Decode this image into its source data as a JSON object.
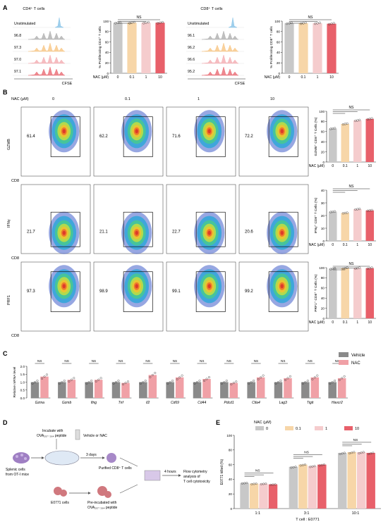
{
  "colors": {
    "c0": "#c8c8c8",
    "c01": "#f7d6a8",
    "c1": "#f5cccd",
    "c10": "#e8606a",
    "vehicle": "#8a8a8a",
    "nac": "#e8606a"
  },
  "panel_labels": {
    "a": "A",
    "b": "B",
    "c": "C",
    "d": "D",
    "e": "E"
  },
  "panel_a": {
    "cd4_title": "CD4⁺ T cells",
    "cd8_title": "CD8⁺ T cells",
    "histogram_labels_cd4": [
      "Unstimulated",
      "96.8",
      "97.3",
      "97.0",
      "97.1"
    ],
    "histogram_labels_cd8": [
      "Unstimulated",
      "96.1",
      "96.2",
      "96.6",
      "95.2"
    ],
    "xaxis": "CFSE",
    "nac_label": "NAC (μM)",
    "ns": "NS"
  },
  "panel_b": {
    "nac_header": "NAC (μM)",
    "concentrations": [
      "0",
      "0.1",
      "1",
      "10"
    ],
    "rows": [
      {
        "ylabel": "GZMB",
        "values": [
          "61.4",
          "62.2",
          "71.6",
          "72.2"
        ]
      },
      {
        "ylabel": "IFNγ",
        "values": [
          "21.7",
          "21.1",
          "22.7",
          "20.6"
        ]
      },
      {
        "ylabel": "PRF1",
        "values": [
          "97.3",
          "98.9",
          "99.1",
          "99.2"
        ]
      }
    ],
    "xlabel": "CD8",
    "nac_label": "NAC (μM)",
    "ns": "NS"
  },
  "panel_c": {
    "ylabel": "Relative mRNA level",
    "legend": [
      "Vehicle",
      "NAC"
    ],
    "ns": "NS",
    "genes": [
      "Gzma",
      "Gzmb",
      "Ifng",
      "Tnf",
      "Il2",
      "Cd69",
      "Cd44",
      "Pdcd1",
      "Ctla4",
      "Lag3",
      "Tigit",
      "Havcr2"
    ]
  },
  "panel_d": {
    "splenic": "Splenic cells\nfrom OT-I mice",
    "incubate1": "Incubate with",
    "incubate2": "OVA₂₅₇₋₂₆₄ peptide",
    "vehicle_nac": "Vehicle or NAC",
    "days": "3 days",
    "purified": "Purified CD8⁺ T cells",
    "e0771": "E0771 cells",
    "preinc1": "Pre-incubated with",
    "preinc2": "OVA₂₅₇₋₂₆₄ peptide",
    "hours": "4 hours",
    "flow1": "Flow cytometry",
    "flow2": "analysis of",
    "flow3": "T cell cytotoxicity"
  },
  "chart_data": [
    {
      "type": "bar",
      "ylabel": "% Proliferating CD4⁺ T cells",
      "xlabel": "NAC (μM)",
      "categories": [
        "0",
        "0.1",
        "1",
        "10"
      ],
      "values": [
        97,
        97,
        97,
        97
      ],
      "ylim": [
        0,
        100
      ],
      "yticks": [
        "0",
        "20",
        "40",
        "60",
        "80",
        "100"
      ]
    },
    {
      "type": "bar",
      "ylabel": "% Proliferating CD8⁺ T cells",
      "xlabel": "NAC (μM)",
      "categories": [
        "0",
        "0.1",
        "1",
        "10"
      ],
      "values": [
        96,
        96,
        96,
        95
      ],
      "ylim": [
        0,
        100
      ],
      "yticks": [
        "0",
        "20",
        "40",
        "60",
        "80",
        "100"
      ]
    },
    {
      "type": "bar",
      "ylabel": "GZMB⁺ CD8⁺ T Cells (%)",
      "xlabel": "NAC (μM)",
      "categories": [
        "0",
        "0.1",
        "1",
        "10"
      ],
      "values": [
        66,
        75,
        82,
        85
      ],
      "ylim": [
        0,
        100
      ],
      "yticks": [
        "0",
        "20",
        "40",
        "60",
        "80",
        "100"
      ]
    },
    {
      "type": "bar",
      "ylabel": "IFNγ⁺ CD8⁺ T Cells (%)",
      "xlabel": "NAC (μM)",
      "categories": [
        "0",
        "0.1",
        "1",
        "10"
      ],
      "values": [
        23,
        22,
        25,
        24
      ],
      "ylim": [
        0,
        40
      ],
      "yticks": [
        "0",
        "10",
        "20",
        "30",
        "40"
      ]
    },
    {
      "type": "bar",
      "ylabel": "PRF1⁺ CD8⁺ T Cells (%)",
      "xlabel": "NAC (μM)",
      "categories": [
        "0",
        "0.1",
        "1",
        "10"
      ],
      "values": [
        98,
        99,
        99,
        99
      ],
      "ylim": [
        0,
        100
      ],
      "yticks": [
        "0",
        "20",
        "40",
        "60",
        "80",
        "100"
      ]
    },
    {
      "type": "bar",
      "ylabel": "Relative mRNA level",
      "categories": [
        "Gzma",
        "Gzmb",
        "Ifng",
        "Tnf",
        "Il2",
        "Cd69",
        "Cd44",
        "Pdcd1",
        "Ctla4",
        "Lag3",
        "Tigit",
        "Havcr2"
      ],
      "series": [
        {
          "name": "Vehicle",
          "values": [
            1.0,
            1.0,
            1.0,
            1.0,
            1.0,
            1.0,
            1.0,
            1.0,
            1.0,
            1.0,
            1.0,
            1.0
          ]
        },
        {
          "name": "NAC",
          "values": [
            1.35,
            1.15,
            1.15,
            0.95,
            1.45,
            1.3,
            1.2,
            0.95,
            1.3,
            1.25,
            1.3,
            1.25
          ]
        }
      ],
      "ylim": [
        0,
        2
      ],
      "yticks": [
        "0.0",
        "0.5",
        "1.0",
        "1.5",
        "2.0"
      ]
    },
    {
      "type": "bar",
      "ylabel": "E0771 killed (%)",
      "xlabel": "T cell : E0771",
      "legend_title": "NAC (μM)",
      "legend": [
        "0",
        "0.1",
        "1",
        "10"
      ],
      "categories": [
        "1:1",
        "3:1",
        "10:1"
      ],
      "series": [
        {
          "name": "0",
          "values": [
            35,
            57,
            76
          ]
        },
        {
          "name": "0.1",
          "values": [
            34,
            60,
            77
          ]
        },
        {
          "name": "1",
          "values": [
            34,
            58,
            77
          ]
        },
        {
          "name": "10",
          "values": [
            33,
            60,
            76
          ]
        }
      ],
      "ylim": [
        0,
        100
      ],
      "yticks": [
        "0",
        "20",
        "40",
        "60",
        "80",
        "100"
      ]
    }
  ]
}
